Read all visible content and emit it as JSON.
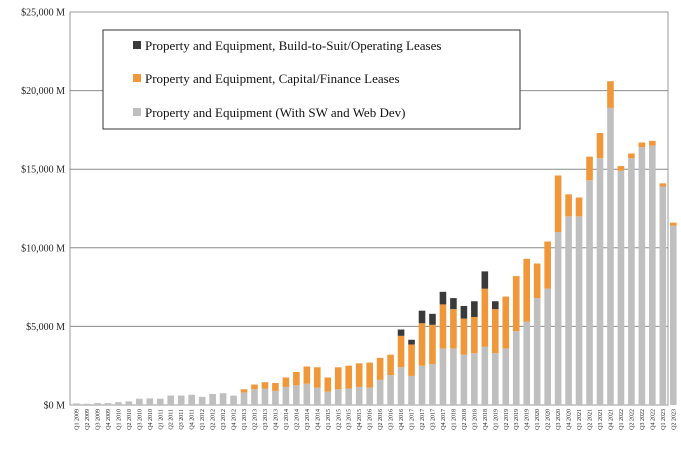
{
  "chart_data": {
    "type": "bar",
    "stacked": true,
    "grid": "horizontal",
    "legend_position": "top-left",
    "ylim": [
      0,
      25000
    ],
    "y_ticks": [
      {
        "value": 0,
        "label": "$0 M"
      },
      {
        "value": 5000,
        "label": "$5,000 M"
      },
      {
        "value": 10000,
        "label": "$10,000 M"
      },
      {
        "value": 15000,
        "label": "$15,000 M"
      },
      {
        "value": 20000,
        "label": "$20,000 M"
      },
      {
        "value": 25000,
        "label": "$25,000 M"
      }
    ],
    "categories": [
      "Q1 2009",
      "Q2 2009",
      "Q3 2009",
      "Q4 2009",
      "Q1 2010",
      "Q2 2010",
      "Q3 2010",
      "Q4 2010",
      "Q1 2011",
      "Q2 2011",
      "Q3 2011",
      "Q4 2011",
      "Q1 2012",
      "Q2 2012",
      "Q3 2012",
      "Q4 2012",
      "Q1 2013",
      "Q2 2013",
      "Q3 2013",
      "Q4 2013",
      "Q1 2014",
      "Q2 2014",
      "Q3 2014",
      "Q4 2014",
      "Q1 2015",
      "Q2 2015",
      "Q3 2015",
      "Q4 2015",
      "Q1 2016",
      "Q2 2016",
      "Q3 2016",
      "Q4 2016",
      "Q1 2017",
      "Q2 2017",
      "Q3 2017",
      "Q4 2017",
      "Q1 2018",
      "Q2 2018",
      "Q3 2018",
      "Q4 2018",
      "Q1 2019",
      "Q2 2019",
      "Q3 2019",
      "Q4 2019",
      "Q1 2020",
      "Q2 2020",
      "Q3 2020",
      "Q4 2020",
      "Q1 2021",
      "Q2 2021",
      "Q3 2021",
      "Q4 2021",
      "Q1 2022",
      "Q2 2022",
      "Q3 2022",
      "Q4 2022",
      "Q1 2023",
      "Q2 2023"
    ],
    "series": [
      {
        "name": "Property and Equipment (With SW and Web Dev)",
        "color": "#bfbfbf",
        "values": [
          100,
          80,
          120,
          120,
          180,
          230,
          400,
          420,
          400,
          600,
          600,
          650,
          520,
          700,
          750,
          600,
          800,
          1000,
          1050,
          900,
          1150,
          1250,
          1350,
          1100,
          850,
          1000,
          1050,
          1150,
          1100,
          1600,
          1900,
          2400,
          1850,
          2500,
          2600,
          3600,
          3600,
          3200,
          3300,
          3700,
          3300,
          3600,
          4700,
          5300,
          6800,
          7400,
          11000,
          12000,
          12000,
          14300,
          15700,
          18900,
          14900,
          15700,
          16400,
          16500,
          13900,
          11400
        ]
      },
      {
        "name": "Property and Equipment, Capital/Finance Leases",
        "color": "#f0973a",
        "values": [
          0,
          0,
          0,
          0,
          0,
          0,
          0,
          0,
          0,
          0,
          0,
          0,
          0,
          0,
          0,
          0,
          200,
          300,
          400,
          500,
          600,
          850,
          1100,
          1300,
          900,
          1400,
          1450,
          1500,
          1600,
          1400,
          1300,
          2000,
          2000,
          2700,
          2500,
          2800,
          2500,
          2300,
          2300,
          3700,
          2800,
          3300,
          3500,
          4000,
          2200,
          3000,
          3600,
          1400,
          1200,
          1500,
          1600,
          1700,
          300,
          300,
          300,
          300,
          200,
          200
        ]
      },
      {
        "name": "Property and Equipment, Build-to-Suit/Operating Leases",
        "color": "#3a3a3a",
        "values": [
          0,
          0,
          0,
          0,
          0,
          0,
          0,
          0,
          0,
          0,
          0,
          0,
          0,
          0,
          0,
          0,
          0,
          0,
          0,
          0,
          0,
          0,
          0,
          0,
          0,
          0,
          0,
          0,
          0,
          0,
          0,
          400,
          300,
          800,
          700,
          800,
          700,
          800,
          1000,
          1100,
          500,
          0,
          0,
          0,
          0,
          0,
          0,
          0,
          0,
          0,
          0,
          0,
          0,
          0,
          0,
          0,
          0,
          0
        ]
      }
    ],
    "bar_values_note": "",
    "extra": {}
  }
}
